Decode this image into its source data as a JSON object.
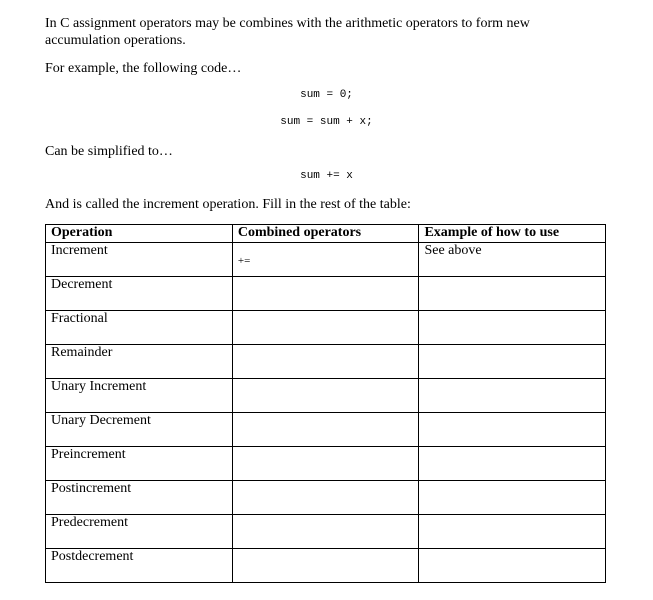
{
  "paragraphs": {
    "intro": "In C assignment operators may be combines with the arithmetic operators to form new accumulation operations.",
    "example": "For example, the following code…",
    "simplified": "Can be simplified to…",
    "called": "And is called the increment operation. Fill in the rest of the table:"
  },
  "code": {
    "line1": "sum = 0;",
    "line2": "sum = sum + x;",
    "line3": "sum += x"
  },
  "table": {
    "headers": [
      "Operation",
      "Combined operators",
      "Example of how to use"
    ],
    "rows": [
      {
        "operation": "Increment",
        "combined": "+=",
        "example": "See above"
      },
      {
        "operation": "Decrement",
        "combined": "",
        "example": ""
      },
      {
        "operation": "Fractional",
        "combined": "",
        "example": ""
      },
      {
        "operation": "Remainder",
        "combined": "",
        "example": ""
      },
      {
        "operation": "Unary Increment",
        "combined": "",
        "example": ""
      },
      {
        "operation": "Unary Decrement",
        "combined": "",
        "example": ""
      },
      {
        "operation": "Preincrement",
        "combined": "",
        "example": ""
      },
      {
        "operation": "Postincrement",
        "combined": "",
        "example": ""
      },
      {
        "operation": "Predecrement",
        "combined": "",
        "example": ""
      },
      {
        "operation": "Postdecrement",
        "combined": "",
        "example": ""
      }
    ]
  }
}
